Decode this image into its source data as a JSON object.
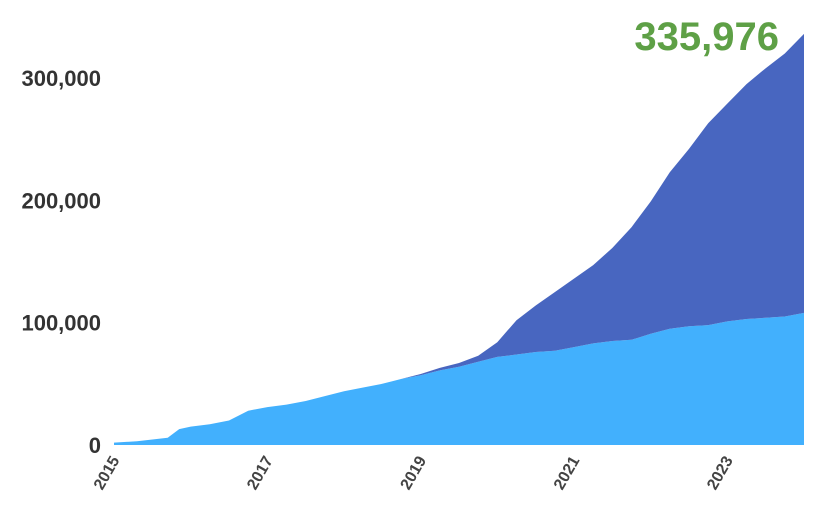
{
  "chart_data": {
    "type": "area",
    "stacked": true,
    "grid": false,
    "legend": "none",
    "total_label": "335,976",
    "total_color": "#5ea046",
    "xlim": [
      2015.0,
      2024.0
    ],
    "ylim": [
      0,
      340000
    ],
    "yticks": [
      {
        "value": 0,
        "label": "0"
      },
      {
        "value": 100000,
        "label": "100,000"
      },
      {
        "value": 200000,
        "label": "200,000"
      },
      {
        "value": 300000,
        "label": "300,000"
      }
    ],
    "xticks": [
      {
        "value": 2015,
        "label": "2015"
      },
      {
        "value": 2017,
        "label": "2017"
      },
      {
        "value": 2019,
        "label": "2019"
      },
      {
        "value": 2021,
        "label": "2021"
      },
      {
        "value": 2023,
        "label": "2023"
      }
    ],
    "series": [
      {
        "color": "#42b0fd",
        "x": [
          2015.0,
          2015.3,
          2015.7,
          2015.85,
          2016.0,
          2016.25,
          2016.5,
          2016.75,
          2017.0,
          2017.25,
          2017.5,
          2017.75,
          2018.0,
          2018.25,
          2018.5,
          2018.75,
          2019.0,
          2019.25,
          2019.5,
          2019.75,
          2020.0,
          2020.25,
          2020.5,
          2020.75,
          2021.0,
          2021.25,
          2021.5,
          2021.75,
          2022.0,
          2022.25,
          2022.5,
          2022.75,
          2023.0,
          2023.25,
          2023.5,
          2023.75,
          2024.0
        ],
        "values": [
          2000,
          3000,
          6000,
          13000,
          15000,
          17000,
          20000,
          28000,
          31000,
          33000,
          36000,
          40000,
          44000,
          47000,
          50000,
          54000,
          57000,
          61000,
          64000,
          68000,
          72000,
          74000,
          76000,
          77000,
          80000,
          83000,
          85000,
          86000,
          91000,
          95000,
          97000,
          98000,
          101000,
          103000,
          104000,
          105000,
          108000
        ]
      },
      {
        "color": "#4866c0",
        "x": [
          2015.0,
          2015.3,
          2015.7,
          2015.85,
          2016.0,
          2016.25,
          2016.5,
          2016.75,
          2017.0,
          2017.25,
          2017.5,
          2017.75,
          2018.0,
          2018.25,
          2018.5,
          2018.75,
          2019.0,
          2019.25,
          2019.5,
          2019.75,
          2020.0,
          2020.25,
          2020.5,
          2020.75,
          2021.0,
          2021.25,
          2021.5,
          2021.75,
          2022.0,
          2022.25,
          2022.5,
          2022.75,
          2023.0,
          2023.25,
          2023.5,
          2023.75,
          2024.0
        ],
        "values": [
          0,
          0,
          0,
          0,
          0,
          0,
          0,
          0,
          0,
          0,
          0,
          0,
          0,
          0,
          0,
          0,
          1000,
          2000,
          3000,
          5000,
          12000,
          28000,
          38000,
          48000,
          56000,
          64000,
          76000,
          92000,
          108000,
          128000,
          145000,
          165000,
          178000,
          192000,
          204000,
          215000,
          228000
        ]
      }
    ]
  }
}
